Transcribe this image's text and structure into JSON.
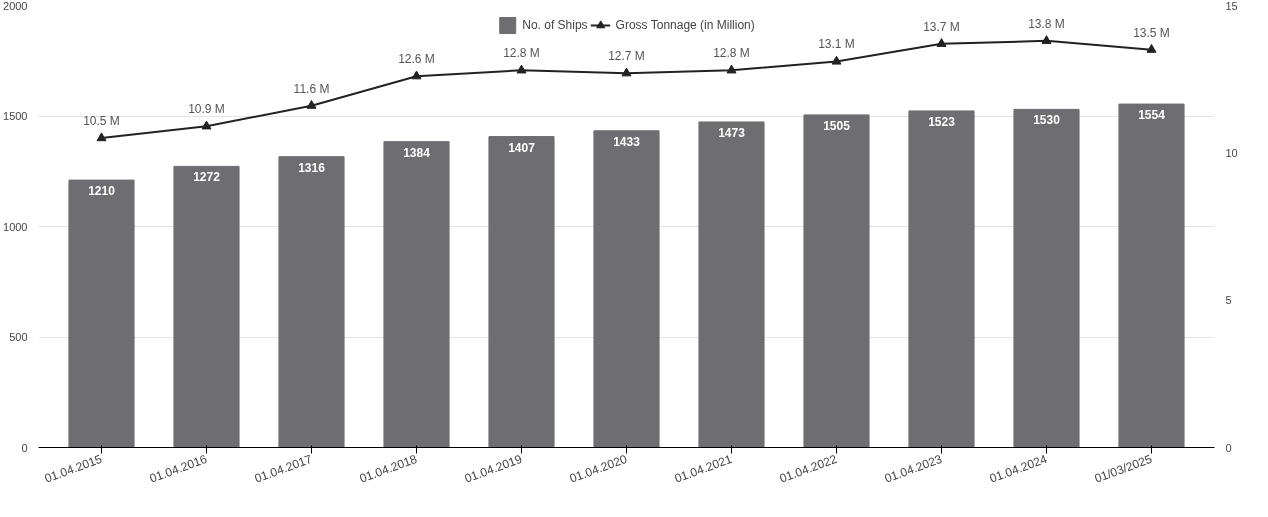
{
  "chart_data": {
    "type": "bar",
    "categories": [
      "01.04.2015",
      "01.04.2016",
      "01.04.2017",
      "01.04.2018",
      "01.04.2019",
      "01.04.2020",
      "01.04.2021",
      "01.04.2022",
      "01.04.2023",
      "01.04.2024",
      "01/03/2025"
    ],
    "series": [
      {
        "name": "No. of Ships",
        "color": "#6e6e72",
        "values": [
          1210,
          1272,
          1316,
          1384,
          1407,
          1433,
          1473,
          1505,
          1523,
          1530,
          1554
        ],
        "value_labels": [
          "1210",
          "1272",
          "1316",
          "1384",
          "1407",
          "1433",
          "1473",
          "1505",
          "1523",
          "1530",
          "1554"
        ]
      },
      {
        "name": "Gross Tonnage (in Million)",
        "type": "line",
        "axis": "y2",
        "color": "#222222",
        "marker": "triangle",
        "values": [
          10.5,
          10.9,
          11.6,
          12.6,
          12.8,
          12.7,
          12.8,
          13.1,
          13.7,
          13.8,
          13.5
        ],
        "value_labels": [
          "10.5 M",
          "10.9 M",
          "11.6 M",
          "12.6 M",
          "12.8 M",
          "12.7 M",
          "12.8 M",
          "13.1 M",
          "13.7 M",
          "13.8 M",
          "13.5 M"
        ]
      }
    ],
    "ylim": [
      0,
      2000
    ],
    "yticks": [
      0,
      500,
      1000,
      1500,
      2000
    ],
    "y2lim": [
      0,
      15
    ],
    "y2ticks": [
      0,
      5,
      10,
      15
    ],
    "grid": "y",
    "legend": "top"
  }
}
